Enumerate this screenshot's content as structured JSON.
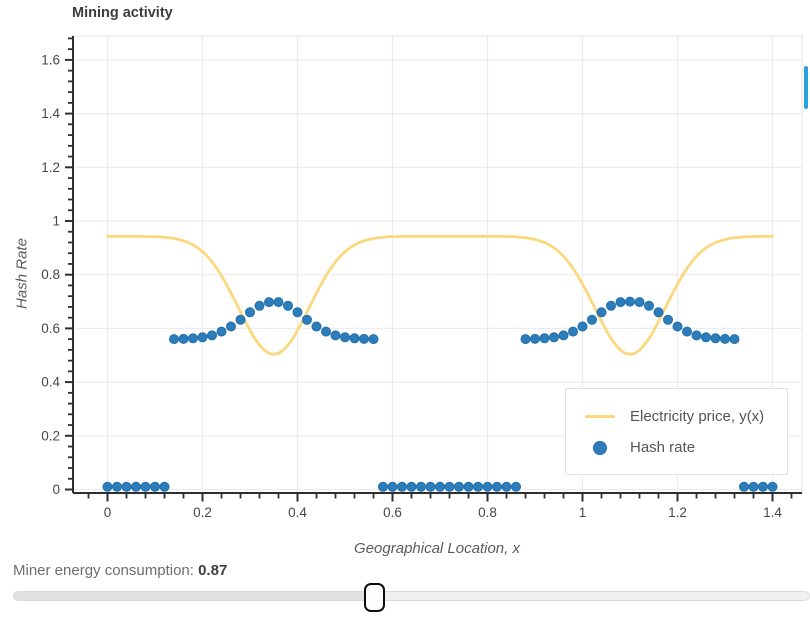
{
  "chart_data": {
    "type": "line+scatter",
    "title": "Mining activity",
    "xlabel": "Geographical Location, x",
    "ylabel": "Hash Rate",
    "xlim": [
      -0.073,
      1.462
    ],
    "ylim": [
      -0.013,
      1.689
    ],
    "x_ticks": [
      0,
      0.2,
      0.4,
      0.6,
      0.8,
      1,
      1.2,
      1.4
    ],
    "y_ticks": [
      0,
      0.2,
      0.4,
      0.6,
      0.8,
      1,
      1.2,
      1.4,
      1.6
    ],
    "minor_tick_step": 0.04,
    "grid": true,
    "legend_position": "bottom-right",
    "series": [
      {
        "name": "Electricity price, y(x)",
        "type": "line",
        "color": "#fbd77e",
        "x0": 0,
        "dx": 0.01,
        "y": [
          0.943,
          0.943,
          0.943,
          0.943,
          0.943,
          0.943,
          0.943,
          0.943,
          0.942,
          0.942,
          0.942,
          0.941,
          0.939,
          0.938,
          0.935,
          0.931,
          0.926,
          0.92,
          0.911,
          0.9,
          0.886,
          0.869,
          0.848,
          0.824,
          0.796,
          0.765,
          0.732,
          0.697,
          0.661,
          0.626,
          0.592,
          0.562,
          0.538,
          0.519,
          0.507,
          0.503,
          0.507,
          0.519,
          0.538,
          0.562,
          0.592,
          0.626,
          0.661,
          0.697,
          0.732,
          0.765,
          0.796,
          0.824,
          0.848,
          0.869,
          0.886,
          0.9,
          0.911,
          0.92,
          0.926,
          0.931,
          0.935,
          0.938,
          0.939,
          0.941,
          0.942,
          0.942,
          0.943,
          0.943,
          0.943,
          0.943,
          0.943,
          0.943,
          0.943,
          0.943,
          0.943,
          0.943,
          0.943,
          0.943,
          0.943,
          0.943,
          0.943,
          0.943,
          0.943,
          0.943,
          0.943,
          0.943,
          0.943,
          0.943,
          0.942,
          0.942,
          0.941,
          0.939,
          0.938,
          0.935,
          0.931,
          0.926,
          0.92,
          0.911,
          0.9,
          0.886,
          0.869,
          0.848,
          0.824,
          0.796,
          0.765,
          0.732,
          0.697,
          0.661,
          0.626,
          0.592,
          0.562,
          0.538,
          0.519,
          0.507,
          0.503,
          0.507,
          0.519,
          0.538,
          0.562,
          0.592,
          0.626,
          0.661,
          0.697,
          0.732,
          0.765,
          0.796,
          0.824,
          0.848,
          0.869,
          0.886,
          0.9,
          0.911,
          0.92,
          0.926,
          0.931,
          0.935,
          0.938,
          0.939,
          0.941,
          0.942,
          0.942,
          0.943,
          0.943,
          0.943,
          0.943
        ]
      },
      {
        "name": "Hash rate",
        "type": "scatter",
        "color": "#2d7dbb",
        "edge_color": "#1f6fae",
        "x0": 0,
        "dx": 0.02,
        "y": [
          0.01,
          0.01,
          0.01,
          0.01,
          0.01,
          0.01,
          0.01,
          0.56,
          0.561,
          0.563,
          0.567,
          0.574,
          0.588,
          0.607,
          0.632,
          0.66,
          0.684,
          0.698,
          0.698,
          0.684,
          0.66,
          0.632,
          0.607,
          0.588,
          0.574,
          0.567,
          0.563,
          0.561,
          0.56,
          0.01,
          0.01,
          0.01,
          0.01,
          0.01,
          0.01,
          0.01,
          0.01,
          0.01,
          0.01,
          0.01,
          0.01,
          0.01,
          0.01,
          0.01,
          0.56,
          0.561,
          0.563,
          0.567,
          0.574,
          0.588,
          0.607,
          0.632,
          0.66,
          0.684,
          0.698,
          0.7,
          0.698,
          0.684,
          0.66,
          0.632,
          0.607,
          0.588,
          0.574,
          0.567,
          0.563,
          0.561,
          0.56,
          0.01,
          0.01,
          0.01,
          0.01
        ]
      }
    ]
  },
  "colors": {
    "grid": "#ececec",
    "plot_border": "#e3e3e3",
    "axis": "#2f2f2f",
    "tick_label": "#474747",
    "blue_indicator": "#2aa2dc"
  },
  "controls": {
    "label": "Miner energy consumption: ",
    "value": "0.87"
  }
}
